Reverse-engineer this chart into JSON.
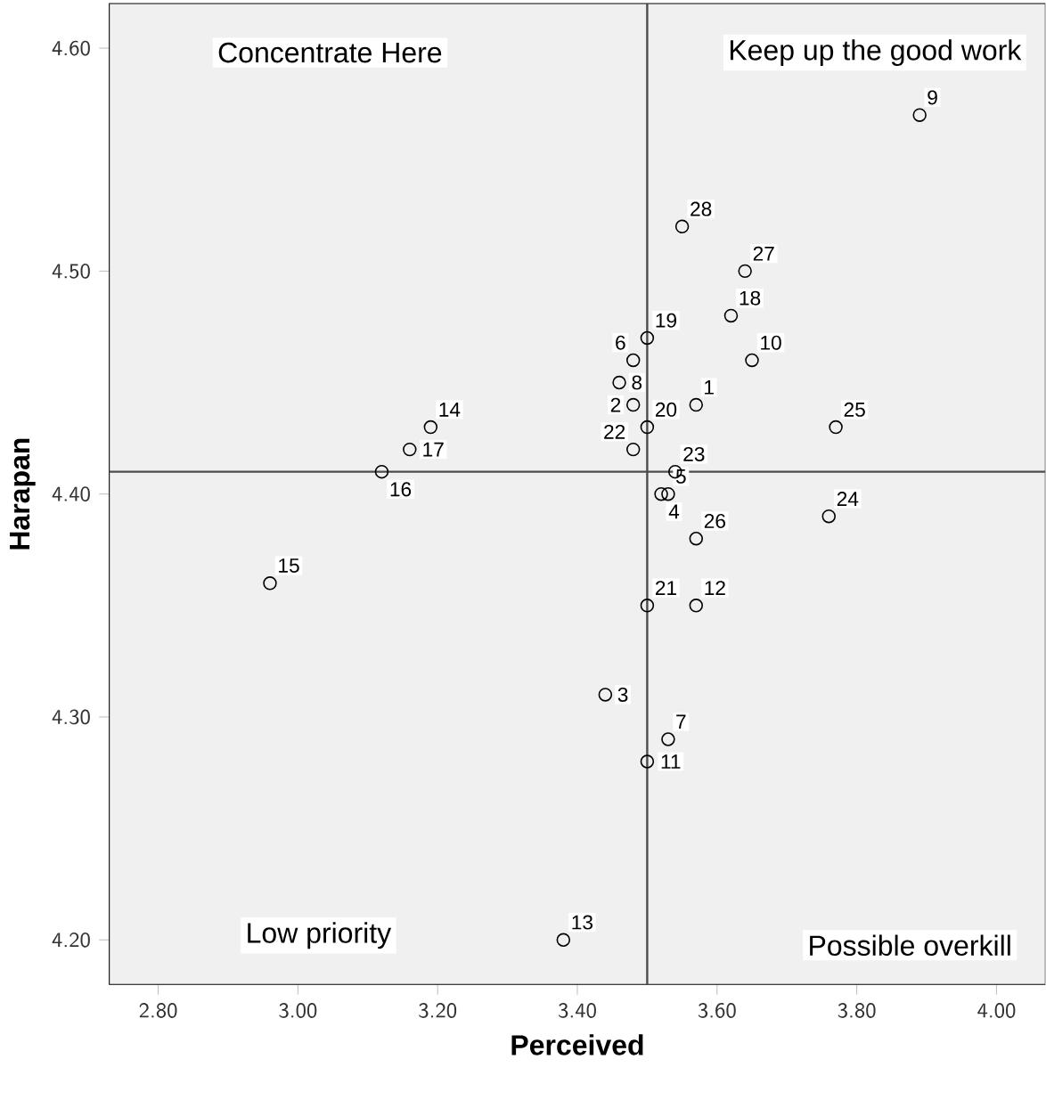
{
  "chart_data": {
    "type": "scatter",
    "xlabel": "Perceived",
    "ylabel": "Harapan",
    "xlim": [
      2.73,
      4.07
    ],
    "ylim": [
      4.18,
      4.62
    ],
    "xticks": [
      {
        "value": 2.8,
        "label": "2.80"
      },
      {
        "value": 3.0,
        "label": "3.00"
      },
      {
        "value": 3.2,
        "label": "3.20"
      },
      {
        "value": 3.4,
        "label": "3.40"
      },
      {
        "value": 3.6,
        "label": "3.60"
      },
      {
        "value": 3.8,
        "label": "3.80"
      },
      {
        "value": 4.0,
        "label": "4.00"
      }
    ],
    "yticks": [
      {
        "value": 4.2,
        "label": "4.20"
      },
      {
        "value": 4.3,
        "label": "4.30"
      },
      {
        "value": 4.4,
        "label": "4.40"
      },
      {
        "value": 4.5,
        "label": "4.50"
      },
      {
        "value": 4.6,
        "label": "4.60"
      }
    ],
    "x": [
      3.57,
      3.48,
      3.44,
      3.52,
      3.53,
      3.48,
      3.53,
      3.46,
      3.89,
      3.65,
      3.5,
      3.57,
      3.38,
      3.19,
      2.96,
      3.12,
      3.16,
      3.62,
      3.5,
      3.5,
      3.5,
      3.48,
      3.54,
      3.76,
      3.77,
      3.57,
      3.64,
      3.55
    ],
    "values": [
      4.44,
      4.44,
      4.31,
      4.4,
      4.4,
      4.46,
      4.29,
      4.45,
      4.57,
      4.46,
      4.28,
      4.35,
      4.2,
      4.43,
      4.36,
      4.41,
      4.42,
      4.48,
      4.47,
      4.43,
      4.35,
      4.42,
      4.41,
      4.39,
      4.43,
      4.38,
      4.5,
      4.52
    ],
    "color": "#000000",
    "marker": "circle",
    "grid": false,
    "ref_lines": [
      {
        "axis": "x",
        "value": 3.5
      },
      {
        "axis": "y",
        "value": 4.41
      }
    ],
    "annotations": [
      "Concentrate Here",
      "Keep up the good work",
      "Low priority",
      "Possible overkill",
      {
        "text": "1",
        "x": 3.57,
        "y": 4.44
      },
      {
        "text": "2",
        "x": 3.48,
        "y": 4.44
      },
      {
        "text": "3",
        "x": 3.44,
        "y": 4.31
      },
      {
        "text": "4",
        "x": 3.52,
        "y": 4.4
      },
      {
        "text": "5",
        "x": 3.53,
        "y": 4.4
      },
      {
        "text": "6",
        "x": 3.48,
        "y": 4.46
      },
      {
        "text": "7",
        "x": 3.53,
        "y": 4.29
      },
      {
        "text": "8",
        "x": 3.46,
        "y": 4.45
      },
      {
        "text": "9",
        "x": 3.89,
        "y": 4.57
      },
      {
        "text": "10",
        "x": 3.65,
        "y": 4.46
      },
      {
        "text": "11",
        "x": 3.5,
        "y": 4.28
      },
      {
        "text": "12",
        "x": 3.57,
        "y": 4.35
      },
      {
        "text": "13",
        "x": 3.38,
        "y": 4.2
      },
      {
        "text": "14",
        "x": 3.19,
        "y": 4.43
      },
      {
        "text": "15",
        "x": 2.96,
        "y": 4.36
      },
      {
        "text": "16",
        "x": 3.12,
        "y": 4.41
      },
      {
        "text": "17",
        "x": 3.16,
        "y": 4.42
      },
      {
        "text": "18",
        "x": 3.62,
        "y": 4.48
      },
      {
        "text": "19",
        "x": 3.5,
        "y": 4.47
      },
      {
        "text": "20",
        "x": 3.5,
        "y": 4.43
      },
      {
        "text": "21",
        "x": 3.5,
        "y": 4.35
      },
      {
        "text": "22",
        "x": 3.48,
        "y": 4.42
      },
      {
        "text": "23",
        "x": 3.54,
        "y": 4.41
      },
      {
        "text": "24",
        "x": 3.76,
        "y": 4.39
      },
      {
        "text": "25",
        "x": 3.77,
        "y": 4.43
      },
      {
        "text": "26",
        "x": 3.57,
        "y": 4.38
      },
      {
        "text": "27",
        "x": 3.64,
        "y": 4.5
      },
      {
        "text": "28",
        "x": 3.55,
        "y": 4.52
      }
    ]
  }
}
